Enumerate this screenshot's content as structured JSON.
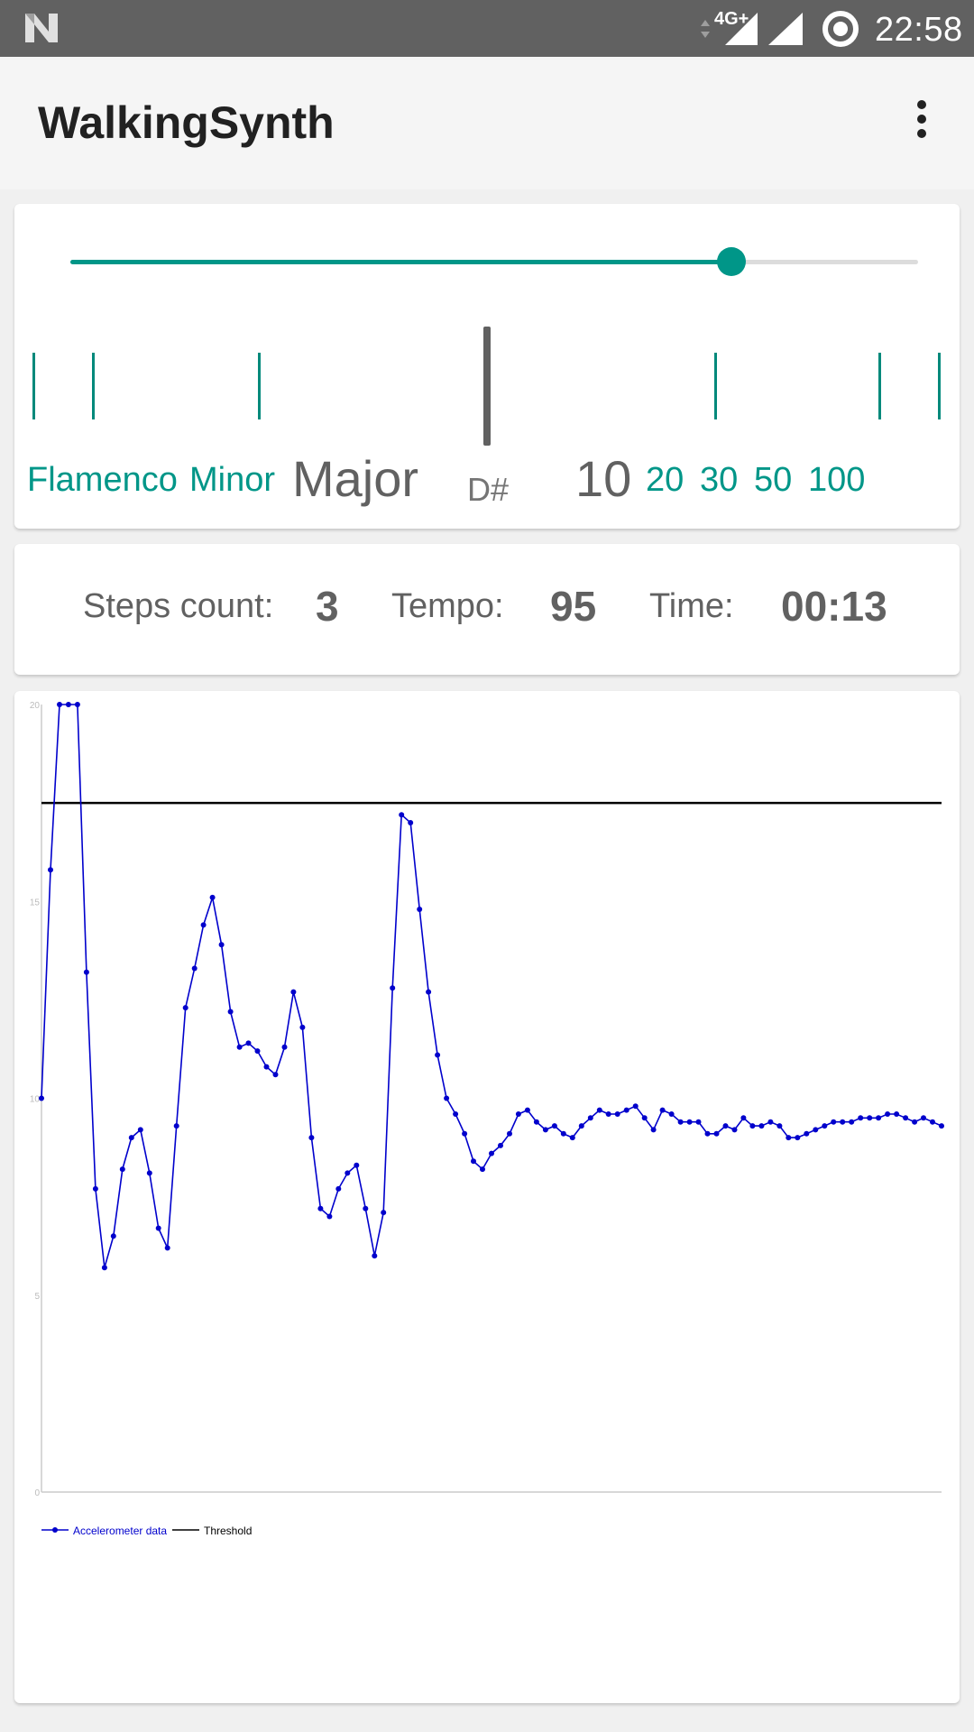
{
  "status_bar": {
    "network": "4G+",
    "time": "22:58",
    "icons": [
      "n-logo-icon",
      "data-arrows-icon",
      "signal-icon",
      "cell-signal-icon",
      "sync-icon"
    ]
  },
  "app_bar": {
    "title": "WalkingSynth",
    "overflow_icon": "more-vert-icon"
  },
  "controls": {
    "slider_value": 0.78,
    "scale_labels": [
      "Flamenco",
      "Minor",
      "Major"
    ],
    "selected_scale": "Major",
    "note": "D#",
    "speed_labels": [
      "10",
      "20",
      "30",
      "50",
      "100"
    ],
    "selected_speed": "10",
    "accent_color": "#009688"
  },
  "stats": {
    "steps_label": "Steps count:",
    "steps_value": "3",
    "tempo_label": "Tempo:",
    "tempo_value": "95",
    "time_label": "Time:",
    "time_value": "00:13"
  },
  "chart_data": {
    "type": "line",
    "ylim": [
      0,
      20
    ],
    "yticks": [
      "0",
      "5",
      "10",
      "15",
      "20"
    ],
    "grid": false,
    "legend": "bottom-left",
    "series": [
      {
        "name": "Accelerometer data",
        "color": "#0000cc",
        "values": [
          10.0,
          15.8,
          20.0,
          20.0,
          20.0,
          13.2,
          7.7,
          5.7,
          6.5,
          8.2,
          9.0,
          9.2,
          8.1,
          6.7,
          6.2,
          9.3,
          12.3,
          13.3,
          14.4,
          15.1,
          13.9,
          12.2,
          11.3,
          11.4,
          11.2,
          10.8,
          10.6,
          11.3,
          12.7,
          11.8,
          9.0,
          7.2,
          7.0,
          7.7,
          8.1,
          8.3,
          7.2,
          6.0,
          7.1,
          12.8,
          17.2,
          17.0,
          14.8,
          12.7,
          11.1,
          10.0,
          9.6,
          9.1,
          8.4,
          8.2,
          8.6,
          8.8,
          9.1,
          9.6,
          9.7,
          9.4,
          9.2,
          9.3,
          9.1,
          9.0,
          9.3,
          9.5,
          9.7,
          9.6,
          9.6,
          9.7,
          9.8,
          9.5,
          9.2,
          9.7,
          9.6,
          9.4,
          9.4,
          9.4,
          9.1,
          9.1,
          9.3,
          9.2,
          9.5,
          9.3,
          9.3,
          9.4,
          9.3,
          9.0,
          9.0,
          9.1,
          9.2,
          9.3,
          9.4,
          9.4,
          9.4,
          9.5,
          9.5,
          9.5,
          9.6,
          9.6,
          9.5,
          9.4,
          9.5,
          9.4,
          9.3
        ]
      },
      {
        "name": "Threshold",
        "color": "#000000",
        "values": [
          17.5
        ]
      }
    ]
  }
}
